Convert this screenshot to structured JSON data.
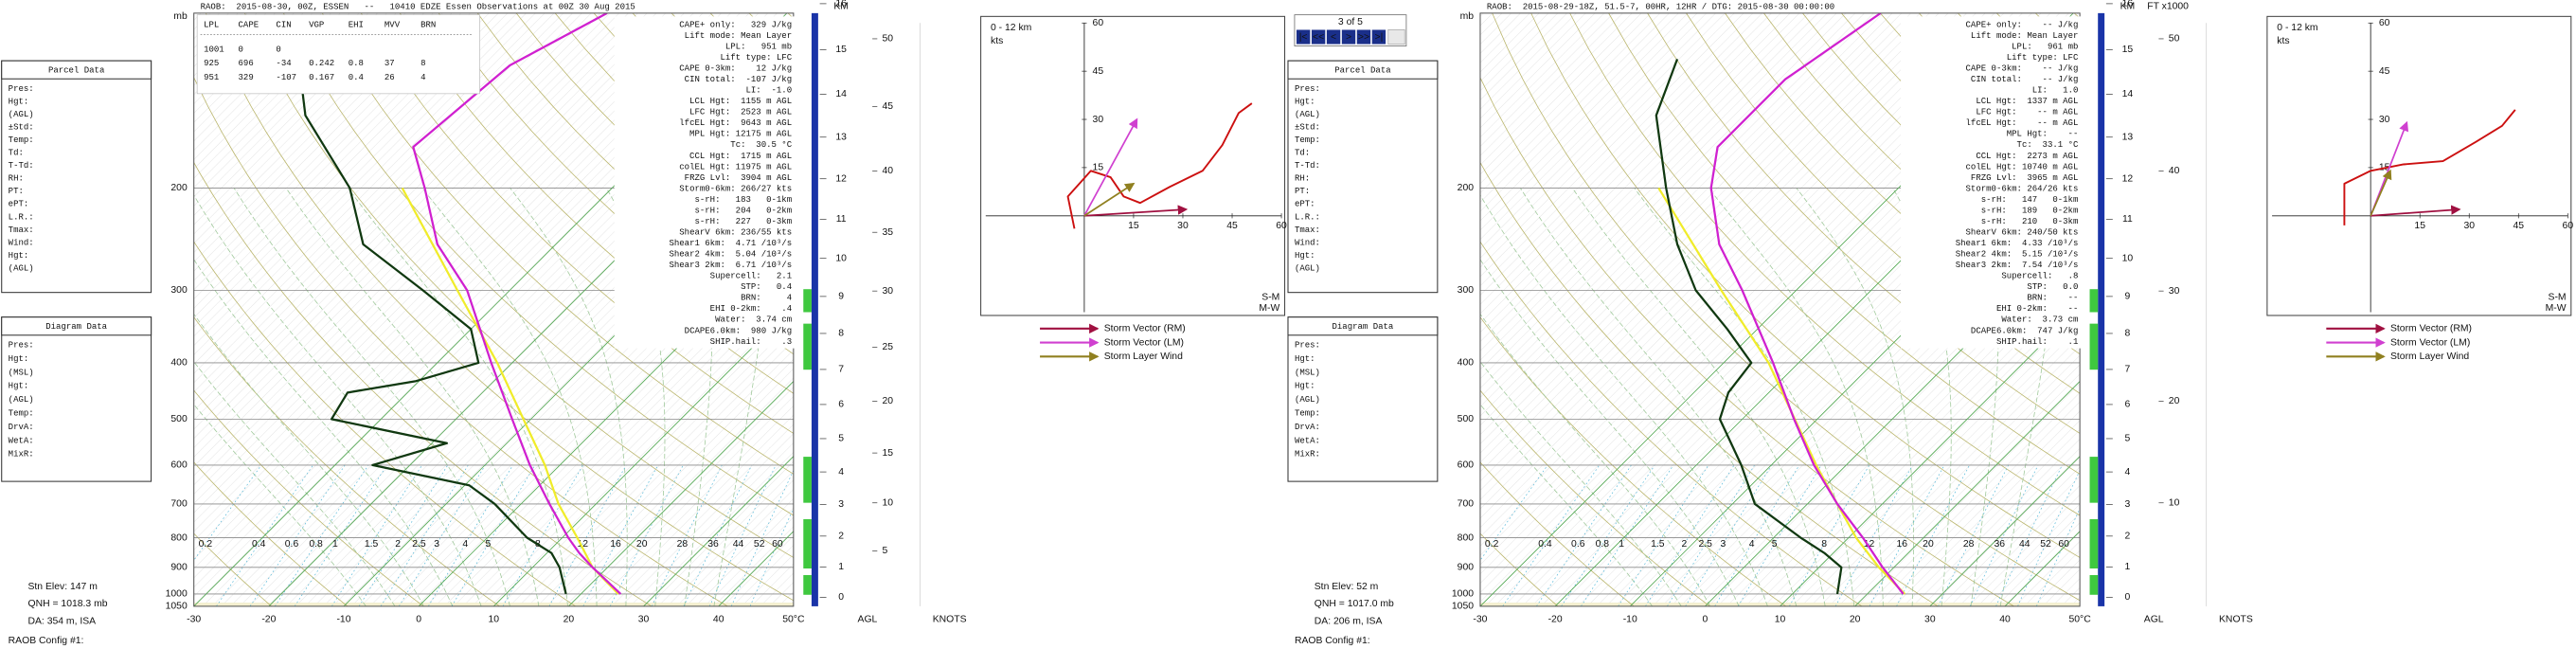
{
  "chart_data": [
    {
      "type": "skewt",
      "header": "RAOB:  2015-08-30, 00Z, ESSEN   --   10410 EDZE Essen Observations at 00Z 30 Aug 2015",
      "table": {
        "header": [
          "LPL",
          "CAPE",
          "CIN",
          "VGP",
          "EHI",
          "MVV",
          "BRN"
        ],
        "rows": [
          [
            1001,
            0,
            0
          ],
          [
            925,
            696,
            -34,
            0.242,
            0.8,
            37,
            8
          ],
          [
            951,
            329,
            -107,
            0.167,
            0.4,
            26,
            4
          ]
        ]
      },
      "indices": [
        "CAPE+ only:   329 J/kg",
        "Lift mode: Mean Layer",
        "LPL:   951 mb",
        "Lift type: LFC",
        "CAPE 0-3km:    12 J/kg",
        "CIN total:  -107 J/kg",
        "LI:  -1.0",
        "LCL Hgt:  1155 m AGL",
        "LFC Hgt:  2523 m AGL",
        "lfcEL Hgt:  9643 m AGL",
        "MPL Hgt: 12175 m AGL",
        "Tc:  30.5 °C",
        "CCL Hgt:  1715 m AGL",
        "colEL Hgt: 11975 m AGL",
        "FRZG Lvl:  3904 m AGL",
        "Storm0-6km: 266/27 kts",
        "s-rH:   183   0-1km",
        "s-rH:   204   0-2km",
        "s-rH:   227   0-3km",
        "ShearV 6km: 236/55 kts",
        "Shear1 6km:  4.71 /10³/s",
        "Shear2 4km:  5.04 /10³/s",
        "Shear3 2km:  6.71 /10³/s",
        "Supercell:   2.1",
        "STP:   0.4",
        "BRN:     4",
        "EHI 0-2km:    .4",
        "Water:  3.74 cm",
        "DCAPE6.0km:  980 J/kg",
        "SHIP.hail:    .3"
      ],
      "parcel_data": {
        "title": "Parcel Data",
        "fields": [
          "Pres:",
          "Hgt:",
          "(AGL)",
          "±Std:",
          "Temp:",
          "Td:",
          "T-Td:",
          "RH:",
          "PT:",
          "ePT:",
          "L.R.:",
          "Tmax:",
          "Wind:",
          "Hgt:",
          "(AGL)"
        ]
      },
      "diagram_data": {
        "title": "Diagram Data",
        "fields": [
          "Pres:",
          "Hgt:",
          "(MSL)",
          "Hgt:",
          "(AGL)",
          "Temp:",
          "DrvA:",
          "WetA:",
          "MixR:"
        ]
      },
      "xlim": [
        -30,
        50
      ],
      "xticks": [
        -30,
        -20,
        -10,
        0,
        10,
        20,
        30,
        40,
        {
          "value": 50,
          "label": "50°C"
        }
      ],
      "ylim": [
        1050,
        100
      ],
      "log_scale": true,
      "y_label": "mb",
      "yticks": [
        200,
        300,
        400,
        500,
        600,
        700,
        800,
        900,
        1000,
        1050
      ],
      "series": [
        {
          "color": "#f0ec2a",
          "x": [
            25,
            18,
            12,
            5,
            -2,
            -11,
            -22,
            -37,
            -58
          ],
          "values": [
            1000,
            900,
            800,
            700,
            600,
            500,
            400,
            300,
            200
          ]
        },
        {
          "color": "#d020d0",
          "x": [
            25.3,
            18,
            14.3,
            10.8,
            3.8,
            -4,
            -12.5,
            -22.8,
            -35.7,
            -45.8,
            -55,
            -62,
            -60,
            -54
          ],
          "values": [
            1000,
            900,
            850,
            800,
            700,
            600,
            500,
            400,
            300,
            250,
            200,
            170,
            123,
            100
          ]
        },
        {
          "color": "#103810",
          "x": [
            18,
            13.6,
            10.6,
            5.3,
            -3.5,
            -9.4,
            -25,
            -18,
            -36.6,
            -38,
            -30.4,
            -24.5,
            -30,
            -41.6,
            -55.7,
            -65,
            -80.6,
            -86
          ],
          "values": [
            1000,
            900,
            850,
            800,
            700,
            650,
            600,
            550,
            500,
            450,
            430,
            400,
            350,
            300,
            250,
            200,
            150,
            130
          ]
        }
      ],
      "mixing_ratio_labels": [
        0.2,
        0.4,
        0.6,
        0.8,
        1,
        1.5,
        2,
        2.5,
        3,
        4,
        5,
        8,
        12,
        16,
        20,
        28,
        36,
        44,
        52,
        60
      ],
      "km_label": "KM",
      "km_ticks": [
        0,
        1,
        2,
        3,
        4,
        5,
        6,
        7,
        8,
        9,
        10,
        11,
        12,
        13,
        14,
        15,
        16
      ],
      "ft_ticks": [
        5,
        10,
        15,
        20,
        25,
        30,
        35,
        40,
        45,
        50
      ],
      "agl_label": "AGL",
      "knots_label": "KNOTS",
      "station": [
        "Stn Elev: 147 m",
        "QNH = 1018.3 mb",
        "DA: 354 m, ISA"
      ],
      "config": "RAOB Config #1:",
      "hodograph": {
        "label": "0 - 12 km",
        "unit": "kts",
        "xlim": [
          -30,
          60
        ],
        "ylim": [
          -30,
          60
        ],
        "xticks": [
          15,
          30,
          45,
          60
        ],
        "yticks": [
          15,
          30,
          45,
          60
        ],
        "color": "#cc1010",
        "u": [
          -3,
          -5,
          2,
          8,
          12,
          17,
          26,
          36,
          42,
          47,
          51
        ],
        "v": [
          -4,
          6,
          14,
          12,
          6,
          4,
          9,
          14,
          22,
          32,
          35
        ],
        "storm_vectors": [
          {
            "name": "Storm Vector (RM)",
            "color": "#a01040",
            "u": 31,
            "v": 2
          },
          {
            "name": "Storm Vector (LM)",
            "color": "#d040d0",
            "u": 16,
            "v": 30
          },
          {
            "name": "Storm Layer Wind",
            "color": "#908020",
            "u": 15,
            "v": 10
          }
        ],
        "sm_label": "S-M",
        "mw_label": "M-W"
      }
    },
    {
      "type": "skewt",
      "header": "RAOB:  2015-08-29-18Z, 51.5-7, 00HR, 12HR / DTG: 2015-08-30 00:00:00",
      "pager": {
        "text": "3 of 5",
        "buttons": [
          "|<",
          "<<",
          "<",
          ">",
          ">>",
          ">|"
        ]
      },
      "indices": [
        "CAPE+ only:    -- J/kg",
        "Lift mode: Mean Layer",
        "LPL:   961 mb",
        "Lift type: LFC",
        "CAPE 0-3km:    -- J/kg",
        "CIN total:    -- J/kg",
        "LI:   1.0",
        "LCL Hgt:  1337 m AGL",
        "LFC Hgt:    -- m AGL",
        "lfcEL Hgt:    -- m AGL",
        "MPL Hgt:    --",
        "Tc:  33.1 °C",
        "CCL Hgt:  2273 m AGL",
        "colEL Hgt: 10740 m AGL",
        "FRZG Lvl:  3965 m AGL",
        "Storm0-6km: 264/26 kts",
        "s-rH:   147   0-1km",
        "s-rH:   189   0-2km",
        "s-rH:   210   0-3km",
        "ShearV 6km: 240/50 kts",
        "Shear1 6km:  4.33 /10³/s",
        "Shear2 4km:  5.15 /10³/s",
        "Shear3 2km:  7.54 /10³/s",
        "Supercell:   .8",
        "STP:   0.0",
        "BRN:    --",
        "EHI 0-2km:    --",
        "Water:  3.73 cm",
        "DCAPE6.0km:  747 J/kg",
        "SHIP.hail:    .1"
      ],
      "parcel_data": {
        "title": "Parcel Data",
        "fields": [
          "Pres:",
          "Hgt:",
          "(AGL)",
          "±Std:",
          "Temp:",
          "Td:",
          "T-Td:",
          "RH:",
          "PT:",
          "ePT:",
          "L.R.:",
          "Tmax:",
          "Wind:",
          "Hgt:",
          "(AGL)"
        ]
      },
      "diagram_data": {
        "title": "Diagram Data",
        "fields": [
          "Pres:",
          "Hgt:",
          "(MSL)",
          "Hgt:",
          "(AGL)",
          "Temp:",
          "DrvA:",
          "WetA:",
          "MixR:"
        ]
      },
      "xlim": [
        -30,
        50
      ],
      "xticks": [
        -30,
        -20,
        -10,
        0,
        10,
        20,
        30,
        40,
        {
          "value": 50,
          "label": "50°C"
        }
      ],
      "ylim": [
        1050,
        100
      ],
      "log_scale": true,
      "y_label": "mb",
      "yticks": [
        200,
        300,
        400,
        500,
        600,
        700,
        800,
        900,
        1000,
        1050
      ],
      "series": [
        {
          "color": "#f0ec2a",
          "x": [
            25,
            18,
            11,
            4,
            -4,
            -13,
            -24,
            -40,
            -62
          ],
          "values": [
            1000,
            900,
            800,
            700,
            600,
            500,
            400,
            300,
            200
          ]
        },
        {
          "color": "#d020d0",
          "x": [
            24.8,
            18.5,
            11.9,
            4,
            -4.3,
            -13.1,
            -23.4,
            -37.2,
            -46.4,
            -55,
            -59.6,
            -59.6,
            -55.7
          ],
          "values": [
            1000,
            900,
            800,
            700,
            600,
            500,
            400,
            300,
            250,
            200,
            170,
            130,
            100
          ]
        },
        {
          "color": "#103810",
          "x": [
            16,
            13,
            8.8,
            3.6,
            -7,
            -14,
            -23,
            -25.4,
            -26.3,
            -34,
            -43.4,
            -52,
            -61,
            -72,
            -76.7
          ],
          "values": [
            1000,
            900,
            850,
            800,
            700,
            600,
            500,
            450,
            400,
            350,
            300,
            250,
            200,
            150,
            120
          ]
        }
      ],
      "mixing_ratio_labels": [
        0.2,
        0.4,
        0.6,
        0.8,
        1,
        1.5,
        2,
        2.5,
        3,
        4,
        5,
        8,
        12,
        16,
        20,
        28,
        36,
        44,
        52,
        60
      ],
      "km_label": "KM",
      "km_ticks": [
        0,
        1,
        2,
        3,
        4,
        5,
        6,
        7,
        8,
        9,
        10,
        11,
        12,
        13,
        14,
        15,
        16
      ],
      "ft_label": "FT x1000",
      "ft_ticks": [
        10,
        20,
        30,
        40,
        50
      ],
      "agl_label": "AGL",
      "knots_label": "KNOTS",
      "station": [
        "Stn Elev: 52 m",
        "QNH = 1017.0 mb",
        "DA: 206 m, ISA"
      ],
      "config": "RAOB Config #1:",
      "hodograph": {
        "label": "0 - 12 km",
        "unit": "kts",
        "xlim": [
          -30,
          60
        ],
        "ylim": [
          -30,
          60
        ],
        "xticks": [
          15,
          30,
          45,
          60
        ],
        "yticks": [
          15,
          30,
          45,
          60
        ],
        "color": "#cc1010",
        "u": [
          -8,
          -8,
          0,
          10,
          22,
          32,
          40,
          44
        ],
        "v": [
          -3,
          10,
          14,
          16,
          17,
          23,
          28,
          33
        ],
        "storm_vectors": [
          {
            "name": "Storm Vector (RM)",
            "color": "#a01040",
            "u": 27,
            "v": 2
          },
          {
            "name": "Storm Vector (LM)",
            "color": "#d040d0",
            "u": 11,
            "v": 29
          },
          {
            "name": "Storm Layer Wind",
            "color": "#908020",
            "u": 6,
            "v": 14
          }
        ],
        "sm_label": "S-M",
        "mw_label": "M-W"
      }
    }
  ]
}
